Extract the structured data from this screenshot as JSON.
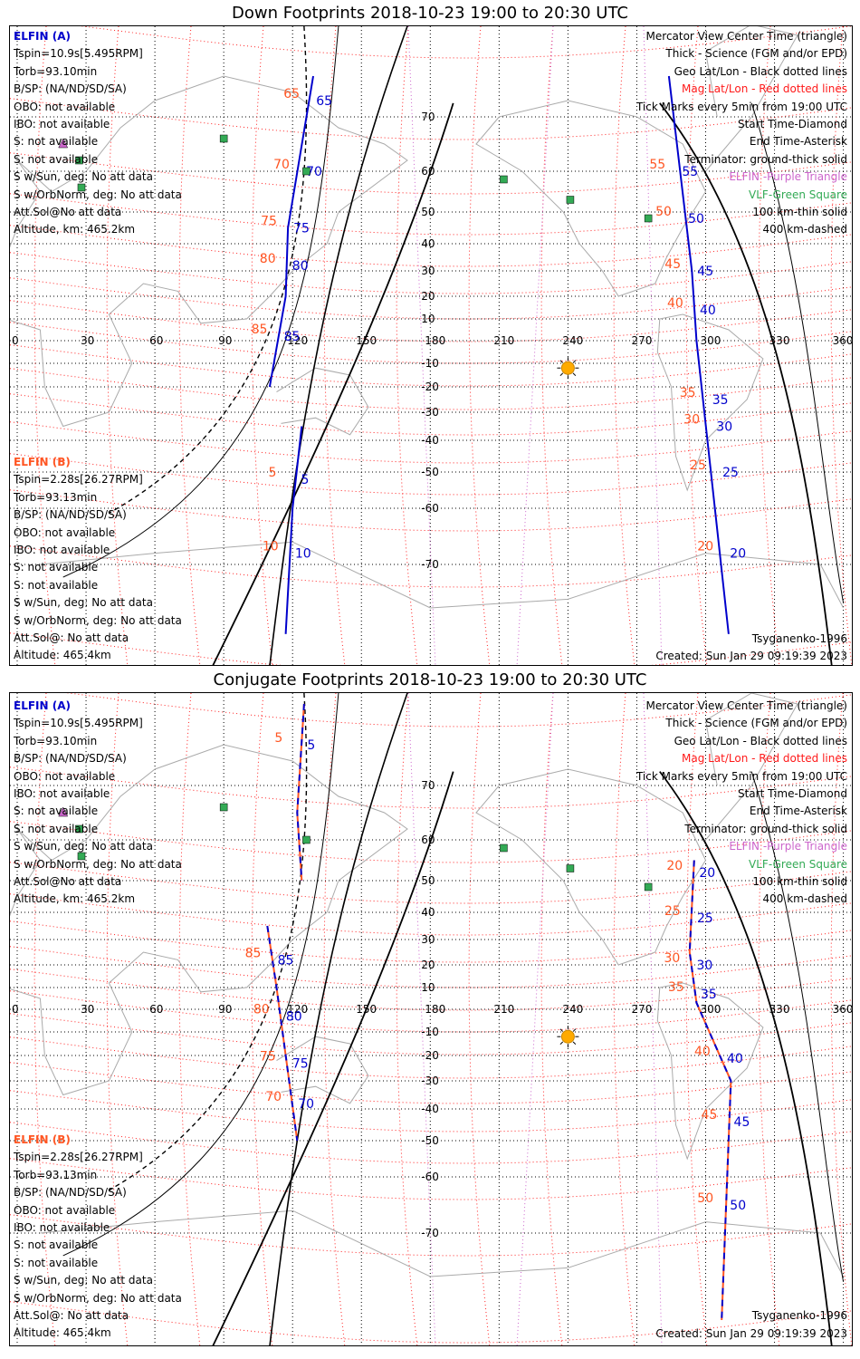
{
  "panels": [
    {
      "title": "Down Footprints 2018-10-23 19:00 to 20:30 UTC",
      "legend": [
        "Mercator View Center Time (triangle)",
        "Thick - Science (FGM and/or EPD)",
        "Geo Lat/Lon - Black dotted lines",
        "Mag Lat/Lon - Red dotted lines",
        "Tick Marks every 5min from 19:00 UTC",
        "Start Time-Diamond",
        "End Time-Asterisk",
        "Terminator: ground-thick solid",
        "ELFIN -Purple Triangle",
        "VLF-Green Square",
        "100 km-thin solid",
        "400 km-dashed"
      ],
      "a": {
        "name": "ELFIN (A)",
        "lines": [
          "Tspin=10.9s[5.495RPM]",
          "Torb=93.10min",
          "B/SP: (NA/ND/SD/SA)",
          "OBO: not available",
          "IBO: not available",
          "S: not available",
          "S: not available",
          "S w/Sun, deg: No att data",
          "S w/OrbNorm, deg: No att data",
          "Att.Sol@No att data",
          "Altitude, km: 465.2km"
        ]
      },
      "b": {
        "name": "ELFIN (B)",
        "lines": [
          "Tspin=2.28s[26.27RPM]",
          "Torb=93.13min",
          "B/SP: (NA/ND/SD/SA)",
          "OBO: not available",
          "IBO: not available",
          "S: not available",
          "S: not available",
          "S w/Sun, deg: No att data",
          "S w/OrbNorm, deg: No att data",
          "Att.Sol@: No att data",
          "Altitude: 465.4km"
        ]
      },
      "model": "Tsyganenko-1996",
      "created": "Created: Sun Jan 29 09:19:39 2023"
    },
    {
      "title": "Conjugate Footprints 2018-10-23 19:00 to 20:30 UTC",
      "legend": [
        "Mercator View Center Time (triangle)",
        "Thick - Science (FGM and/or EPD)",
        "Geo Lat/Lon - Black dotted lines",
        "Mag Lat/Lon - Red dotted lines",
        "Tick Marks every 5min from 19:00 UTC",
        "Start Time-Diamond",
        "End Time-Asterisk",
        "Terminator: ground-thick solid",
        "ELFIN -Purple Triangle",
        "VLF-Green Square",
        "100 km-thin solid",
        "400 km-dashed"
      ],
      "a": {
        "name": "ELFIN (A)",
        "lines": [
          "Tspin=10.9s[5.495RPM]",
          "Torb=93.10min",
          "B/SP: (NA/ND/SD/SA)",
          "OBO: not available",
          "IBO: not available",
          "S: not available",
          "S: not available",
          "S w/Sun, deg: No att data",
          "S w/OrbNorm, deg: No att data",
          "Att.Sol@No att data",
          "Altitude, km: 465.2km"
        ]
      },
      "b": {
        "name": "ELFIN (B)",
        "lines": [
          "Tspin=2.28s[26.27RPM]",
          "Torb=93.13min",
          "B/SP: (NA/ND/SD/SA)",
          "OBO: not available",
          "IBO: not available",
          "S: not available",
          "S: not available",
          "S w/Sun, deg: No att data",
          "S w/OrbNorm, deg: No att data",
          "Att.Sol@: No att data",
          "Altitude: 465.4km"
        ]
      },
      "model": "Tsyganenko-1996",
      "created": "Created: Sun Jan 29 09:19:39 2023"
    }
  ],
  "lon_labels": [
    "0",
    "30",
    "60",
    "90",
    "120",
    "150",
    "180",
    "210",
    "240",
    "270",
    "300",
    "330",
    "360"
  ],
  "lat_labels": [
    "70",
    "60",
    "50",
    "40",
    "30",
    "20",
    "10",
    "-10",
    "-20",
    "-30",
    "-40",
    "-50",
    "-60",
    "-70"
  ],
  "tracks": [
    [
      {
        "name": "elfin-a-west-track",
        "color": "#0000cc",
        "dashed": false,
        "lon": [
          129,
          118,
          117,
          110
        ],
        "lat": [
          75,
          45,
          20,
          -20
        ],
        "labels": [
          "65",
          "70",
          "75",
          "80",
          "85"
        ],
        "label_lat": [
          72,
          60,
          45,
          32,
          2
        ]
      },
      {
        "name": "elfin-a-south-track",
        "color": "#0000cc",
        "dashed": false,
        "lon": [
          124,
          120,
          117
        ],
        "lat": [
          -35,
          -60,
          -78
        ],
        "labels": [
          "5",
          "10"
        ],
        "label_lat": [
          -52,
          -68
        ]
      },
      {
        "name": "elfin-a-east-track",
        "color": "#0000cc",
        "dashed": false,
        "lon": [
          284,
          294,
          296,
          310
        ],
        "lat": [
          75,
          30,
          0,
          -78
        ],
        "labels": [
          "55",
          "50",
          "45",
          "40",
          "35",
          "30",
          "25",
          "20"
        ],
        "label_lat": [
          60,
          48,
          30,
          14,
          -25,
          -35,
          -50,
          -68
        ]
      }
    ],
    [
      {
        "name": "elfin-a-west-conj-track",
        "color": "#0000cc",
        "dashed": true,
        "lon": [
          125,
          122,
          124
        ],
        "lat": [
          80,
          65,
          50
        ],
        "labels": [
          "5"
        ],
        "label_lat": [
          75
        ]
      },
      {
        "name": "elfin-a-main-conj-track",
        "color": "#0000cc",
        "dashed": true,
        "lon": [
          109,
          113,
          117,
          122
        ],
        "lat": [
          35,
          10,
          -20,
          -50
        ],
        "labels": [
          "85",
          "80",
          "75",
          "70"
        ],
        "label_lat": [
          22,
          -3,
          -23,
          -38
        ]
      },
      {
        "name": "elfin-a-east-conj-track",
        "color": "#0000cc",
        "dashed": true,
        "lon": [
          295,
          293,
          296,
          311,
          307
        ],
        "lat": [
          55,
          25,
          3,
          -30,
          -80
        ],
        "labels": [
          "20",
          "25",
          "30",
          "35",
          "40",
          "45",
          "50"
        ],
        "label_lat": [
          52,
          38,
          20,
          7,
          -21,
          -44,
          -65
        ]
      }
    ]
  ],
  "markers": {
    "sun": {
      "lon": 240,
      "lat": -12
    },
    "vlf": [
      [
        90,
        66
      ],
      [
        27,
        62
      ],
      [
        28,
        56
      ],
      [
        126,
        60
      ],
      [
        212,
        58
      ],
      [
        241,
        53
      ],
      [
        275,
        48
      ]
    ],
    "elfin": [
      [
        20,
        65
      ]
    ]
  }
}
